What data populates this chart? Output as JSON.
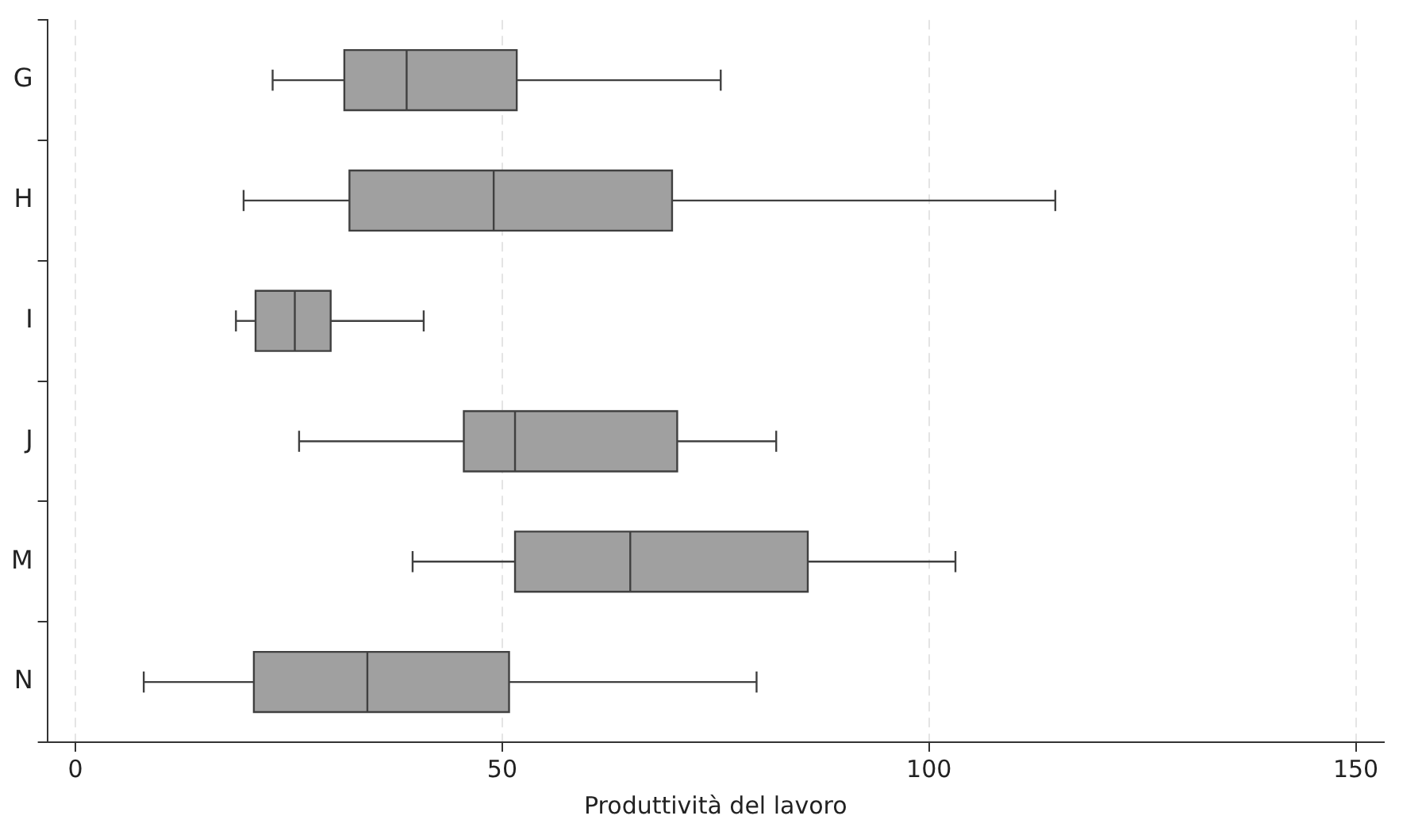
{
  "chart_data": {
    "type": "box",
    "orientation": "horizontal",
    "xlabel": "Produttività del lavoro",
    "categories": [
      "G",
      "H",
      "I",
      "J",
      "M",
      "N"
    ],
    "boxes": [
      {
        "low": 23.1,
        "q1": 31.5,
        "median": 38.8,
        "q3": 51.7,
        "high": 75.6
      },
      {
        "low": 19.7,
        "q1": 32.1,
        "median": 49.0,
        "q3": 69.9,
        "high": 114.8
      },
      {
        "low": 18.8,
        "q1": 21.1,
        "median": 25.7,
        "q3": 29.9,
        "high": 40.8
      },
      {
        "low": 26.2,
        "q1": 45.5,
        "median": 51.5,
        "q3": 70.5,
        "high": 82.1
      },
      {
        "low": 39.5,
        "q1": 51.5,
        "median": 65.0,
        "q3": 85.8,
        "high": 103.1
      },
      {
        "low": 8.0,
        "q1": 20.9,
        "median": 34.2,
        "q3": 50.8,
        "high": 79.8
      }
    ],
    "color": "#a0a0a0",
    "xlim": [
      -3.3,
      153.3
    ],
    "xticks": [
      0,
      50,
      100,
      150
    ],
    "grid": "x"
  }
}
